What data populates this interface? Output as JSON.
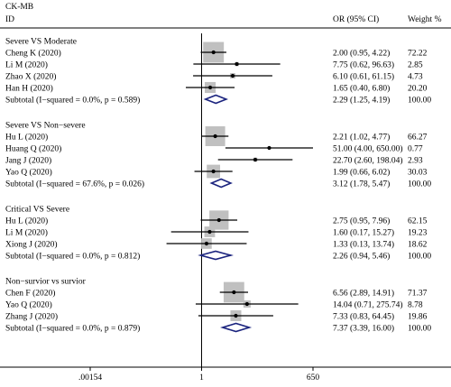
{
  "chart_data": {
    "type": "forest",
    "title": "CK-MB",
    "columns": {
      "id": "ID",
      "effect": "OR (95% CI)",
      "weight": "Weight %"
    },
    "scale": "log",
    "x_ticks": [
      {
        "value": 0.00154,
        "label": ".00154"
      },
      {
        "value": 1,
        "label": "1"
      },
      {
        "value": 650,
        "label": "650"
      }
    ],
    "null_line": 1,
    "groups": [
      {
        "name": "Severe VS Moderate",
        "studies": [
          {
            "label": "Cheng K  (2020)",
            "or": 2.0,
            "lo": 0.95,
            "hi": 4.22,
            "ci": "2.00 (0.95, 4.22)",
            "weight": 72.22,
            "weight_text": "72.22"
          },
          {
            "label": "Li M  (2020)",
            "or": 7.75,
            "lo": 0.62,
            "hi": 96.63,
            "ci": "7.75 (0.62, 96.63)",
            "weight": 2.85,
            "weight_text": "2.85"
          },
          {
            "label": "Zhao X  (2020)",
            "or": 6.1,
            "lo": 0.61,
            "hi": 61.15,
            "ci": "6.10 (0.61, 61.15)",
            "weight": 4.73,
            "weight_text": "4.73"
          },
          {
            "label": "Han H  (2020)",
            "or": 1.65,
            "lo": 0.4,
            "hi": 6.8,
            "ci": "1.65 (0.40, 6.80)",
            "weight": 20.2,
            "weight_text": "20.20"
          }
        ],
        "subtotal": {
          "label": "Subtotal  (I−squared = 0.0%, p = 0.589)",
          "or": 2.29,
          "lo": 1.25,
          "hi": 4.19,
          "ci": "2.29 (1.25, 4.19)",
          "weight_text": "100.00"
        }
      },
      {
        "name": "Severe VS Non−severe",
        "studies": [
          {
            "label": "Hu L  (2020)",
            "or": 2.21,
            "lo": 1.02,
            "hi": 4.77,
            "ci": "2.21 (1.02, 4.77)",
            "weight": 66.27,
            "weight_text": "66.27"
          },
          {
            "label": "Huang Q  (2020)",
            "or": 51.0,
            "lo": 4.0,
            "hi": 650.0,
            "ci": "51.00 (4.00, 650.00)",
            "weight": 0.77,
            "weight_text": "0.77"
          },
          {
            "label": "Jang J  (2020)",
            "or": 22.7,
            "lo": 2.6,
            "hi": 198.04,
            "ci": "22.70 (2.60, 198.04)",
            "weight": 2.93,
            "weight_text": "2.93"
          },
          {
            "label": "Yao Q  (2020)",
            "or": 1.99,
            "lo": 0.66,
            "hi": 6.02,
            "ci": "1.99 (0.66, 6.02)",
            "weight": 30.03,
            "weight_text": "30.03"
          }
        ],
        "subtotal": {
          "label": "Subtotal  (I−squared = 67.6%, p = 0.026)",
          "or": 3.12,
          "lo": 1.78,
          "hi": 5.47,
          "ci": "3.12 (1.78, 5.47)",
          "weight_text": "100.00"
        }
      },
      {
        "name": "Critical VS Severe",
        "studies": [
          {
            "label": "Hu L  (2020)",
            "or": 2.75,
            "lo": 0.95,
            "hi": 7.96,
            "ci": "2.75 (0.95, 7.96)",
            "weight": 62.15,
            "weight_text": "62.15"
          },
          {
            "label": "Li M  (2020)",
            "or": 1.6,
            "lo": 0.17,
            "hi": 15.27,
            "ci": "1.60 (0.17, 15.27)",
            "weight": 19.23,
            "weight_text": "19.23"
          },
          {
            "label": "Xiong J  (2020)",
            "or": 1.33,
            "lo": 0.13,
            "hi": 13.74,
            "ci": "1.33 (0.13, 13.74)",
            "weight": 18.62,
            "weight_text": "18.62"
          }
        ],
        "subtotal": {
          "label": "Subtotal  (I−squared = 0.0%, p = 0.812)",
          "or": 2.26,
          "lo": 0.94,
          "hi": 5.46,
          "ci": "2.26 (0.94, 5.46)",
          "weight_text": "100.00"
        }
      },
      {
        "name": "Non−survior vs survior",
        "studies": [
          {
            "label": "Chen F  (2020)",
            "or": 6.56,
            "lo": 2.89,
            "hi": 14.91,
            "ci": "6.56 (2.89, 14.91)",
            "weight": 71.37,
            "weight_text": "71.37"
          },
          {
            "label": "Yao Q  (2020)",
            "or": 14.04,
            "lo": 0.71,
            "hi": 275.74,
            "ci": "14.04 (0.71, 275.74)",
            "weight": 8.78,
            "weight_text": "8.78"
          },
          {
            "label": "Zhang J  (2020)",
            "or": 7.33,
            "lo": 0.83,
            "hi": 64.45,
            "ci": "7.33 (0.83, 64.45)",
            "weight": 19.86,
            "weight_text": "19.86"
          }
        ],
        "subtotal": {
          "label": "Subtotal  (I−squared = 0.0%, p = 0.879)",
          "or": 7.37,
          "lo": 3.39,
          "hi": 16.0,
          "ci": "7.37 (3.39, 16.00)",
          "weight_text": "100.00"
        }
      }
    ],
    "colors": {
      "box": "#c0c0c0",
      "diamond": "#1a237e",
      "line": "#000000",
      "rule": "#000000"
    }
  }
}
